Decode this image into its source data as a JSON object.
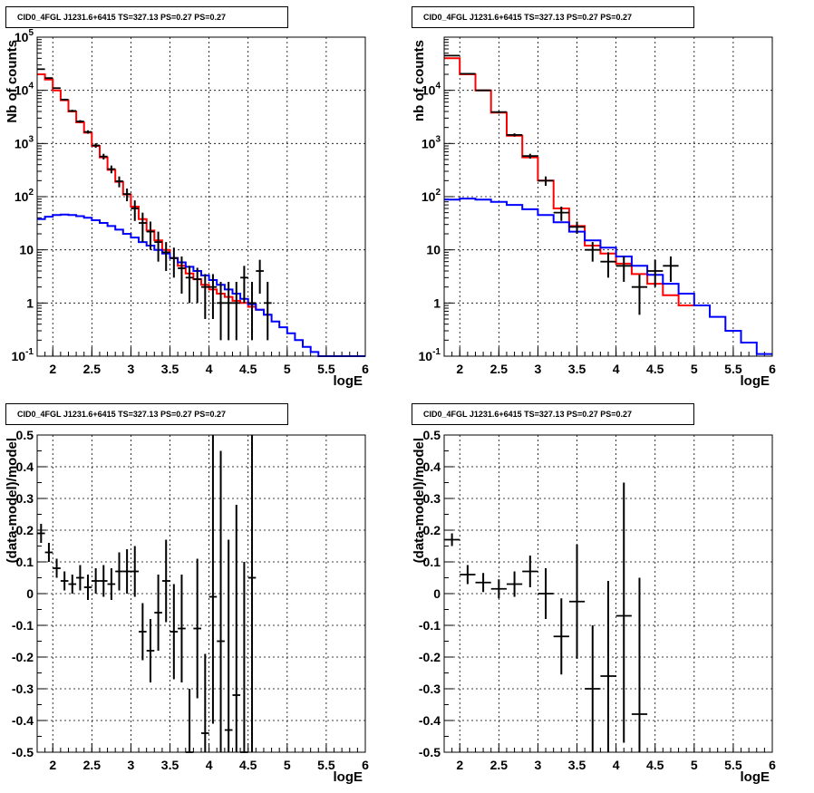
{
  "chart_data": [
    {
      "type": "line",
      "title": "CID0_4FGL J1231.6+6415 TS=327.13 PS=0.27 PS=0.27",
      "xlabel": "logE",
      "ylabel": "Nb of counts",
      "xlim": [
        1.8,
        6.0
      ],
      "ylim": [
        0.1,
        100000
      ],
      "yscale": "log",
      "grid": true,
      "xticks": [
        "2",
        "2.5",
        "3",
        "3.5",
        "4",
        "4.5",
        "5",
        "5.5",
        "6"
      ],
      "yticks": [
        "10^-1",
        "1",
        "10",
        "10^2",
        "10^3",
        "10^4",
        "10^5"
      ],
      "binwidth": 0.1,
      "series": [
        {
          "color": "#ff0000",
          "x": [
            1.8,
            1.9,
            2.0,
            2.1,
            2.2,
            2.3,
            2.4,
            2.5,
            2.6,
            2.7,
            2.8,
            2.9,
            3.0,
            3.1,
            3.2,
            3.3,
            3.4,
            3.5,
            3.6,
            3.7,
            3.8,
            3.9,
            4.0,
            4.1,
            4.2,
            4.3,
            4.4,
            4.5,
            4.6,
            4.7
          ],
          "values": [
            20000,
            16000,
            10000,
            6500,
            4000,
            2500,
            1600,
            900,
            550,
            320,
            190,
            110,
            65,
            38,
            23,
            15,
            10,
            7,
            5,
            3.6,
            2.8,
            2.2,
            1.8,
            1.5,
            1.3,
            1.1,
            1.0,
            0.85,
            0.75,
            0.6
          ]
        },
        {
          "color": "#0000ff",
          "x": [
            1.8,
            1.9,
            2.0,
            2.1,
            2.2,
            2.3,
            2.4,
            2.5,
            2.6,
            2.7,
            2.8,
            2.9,
            3.0,
            3.1,
            3.2,
            3.3,
            3.4,
            3.5,
            3.6,
            3.7,
            3.8,
            3.9,
            4.0,
            4.1,
            4.2,
            4.3,
            4.4,
            4.5,
            4.6,
            4.7,
            4.8,
            4.9,
            5.0,
            5.1,
            5.2,
            5.3,
            5.4,
            5.5,
            5.6,
            5.7,
            5.8,
            5.9
          ],
          "values": [
            38,
            42,
            45,
            46,
            45,
            43,
            40,
            36,
            32,
            28,
            24,
            20,
            17,
            14,
            12,
            10,
            8.5,
            7,
            5.8,
            4.8,
            4,
            3.3,
            2.7,
            2.2,
            1.8,
            1.5,
            1.2,
            0.95,
            0.75,
            0.6,
            0.45,
            0.35,
            0.27,
            0.2,
            0.15,
            0.12,
            0.1,
            0.1,
            0.1,
            0.1,
            0.1,
            0.1
          ]
        },
        {
          "color": "#000000",
          "style": "points",
          "x": [
            1.85,
            1.95,
            2.05,
            2.15,
            2.25,
            2.35,
            2.45,
            2.55,
            2.65,
            2.75,
            2.85,
            2.95,
            3.05,
            3.15,
            3.25,
            3.35,
            3.45,
            3.55,
            3.65,
            3.75,
            3.85,
            3.95,
            4.05,
            4.15,
            4.25,
            4.35,
            4.45,
            4.55,
            4.65,
            4.75
          ],
          "values": [
            25000,
            17000,
            11000,
            6700,
            4100,
            2600,
            1650,
            920,
            570,
            330,
            195,
            112,
            60,
            32,
            22,
            14,
            9,
            7,
            4.5,
            3,
            2.8,
            2,
            2,
            1,
            1,
            1,
            3,
            1,
            4,
            1
          ],
          "err_low": [
            500,
            400,
            300,
            250,
            200,
            150,
            120,
            90,
            70,
            55,
            45,
            30,
            25,
            18,
            12,
            8,
            5,
            4,
            3,
            2,
            1.8,
            1.5,
            1.5,
            0.8,
            0.8,
            0.8,
            2,
            0.8,
            2.5,
            0.8
          ],
          "err_high": [
            500,
            400,
            300,
            250,
            200,
            150,
            120,
            90,
            70,
            55,
            45,
            30,
            25,
            18,
            12,
            8,
            5,
            4,
            3,
            2,
            1.8,
            1.5,
            1.5,
            1.5,
            1.5,
            1.5,
            2,
            1.5,
            2.5,
            1.5
          ]
        }
      ]
    },
    {
      "type": "line",
      "title": "CID0_4FGL J1231.6+6415 TS=327.13 PS=0.27 PS=0.27",
      "xlabel": "logE",
      "ylabel": "nb of counts",
      "xlim": [
        1.8,
        6.0
      ],
      "ylim": [
        0.1,
        100000
      ],
      "yscale": "log",
      "grid": true,
      "xticks": [
        "2",
        "2.5",
        "3",
        "3.5",
        "4",
        "4.5",
        "5",
        "5.5",
        "6"
      ],
      "yticks": [
        "10^-1",
        "1",
        "10",
        "10^2",
        "10^3",
        "10^4"
      ],
      "binwidth": 0.2,
      "series": [
        {
          "color": "#ff0000",
          "x": [
            1.8,
            2.0,
            2.2,
            2.4,
            2.6,
            2.8,
            3.0,
            3.2,
            3.4,
            3.6,
            3.8,
            4.0,
            4.2,
            4.4,
            4.6,
            4.8
          ],
          "values": [
            40000,
            20000,
            10000,
            3800,
            1400,
            550,
            200,
            60,
            28,
            12,
            8.5,
            5.5,
            3.5,
            2.3,
            1.4,
            0.9
          ]
        },
        {
          "color": "#0000ff",
          "x": [
            1.8,
            2.0,
            2.2,
            2.4,
            2.6,
            2.8,
            3.0,
            3.2,
            3.4,
            3.6,
            3.8,
            4.0,
            4.2,
            4.4,
            4.6,
            4.8,
            5.0,
            5.2,
            5.4,
            5.6,
            5.8
          ],
          "values": [
            88,
            92,
            88,
            80,
            70,
            58,
            45,
            33,
            22,
            15,
            11,
            7.5,
            5,
            3.4,
            2.3,
            1.5,
            0.9,
            0.55,
            0.3,
            0.18,
            0.11
          ]
        },
        {
          "color": "#000000",
          "style": "points",
          "x": [
            1.9,
            2.1,
            2.3,
            2.5,
            2.7,
            2.9,
            3.1,
            3.3,
            3.5,
            3.7,
            3.9,
            4.1,
            4.3,
            4.5,
            4.7
          ],
          "values": [
            45000,
            20500,
            10000,
            3900,
            1450,
            580,
            200,
            50,
            27,
            10,
            6,
            5,
            2,
            4,
            5
          ],
          "err_low": [
            800,
            500,
            300,
            180,
            100,
            60,
            40,
            15,
            7,
            4,
            3,
            2.5,
            1.4,
            2,
            2.5
          ],
          "err_high": [
            800,
            500,
            300,
            180,
            100,
            60,
            40,
            15,
            7,
            4,
            3,
            2.5,
            1.4,
            2.5,
            2.5
          ]
        }
      ]
    },
    {
      "type": "scatter",
      "title": "CID0_4FGL J1231.6+6415 TS=327.13 PS=0.27 PS=0.27",
      "xlabel": "logE",
      "ylabel": "(data-model)/model",
      "xlim": [
        1.8,
        6.0
      ],
      "ylim": [
        -0.5,
        0.5
      ],
      "grid": true,
      "xticks": [
        "2",
        "2.5",
        "3",
        "3.5",
        "4",
        "4.5",
        "5",
        "5.5",
        "6"
      ],
      "yticks": [
        "-0.5",
        "-0.4",
        "-0.3",
        "-0.2",
        "-0.1",
        "0",
        "0.1",
        "0.2",
        "0.3",
        "0.4",
        "0.5"
      ],
      "binwidth": 0.1,
      "series": [
        {
          "color": "#000000",
          "x": [
            1.85,
            1.95,
            2.05,
            2.15,
            2.25,
            2.35,
            2.45,
            2.55,
            2.65,
            2.75,
            2.85,
            2.95,
            3.05,
            3.15,
            3.25,
            3.35,
            3.45,
            3.55,
            3.65,
            3.75,
            3.85,
            3.95,
            4.05,
            4.15,
            4.25,
            4.35,
            4.45,
            4.55
          ],
          "values": [
            0.19,
            0.13,
            0.08,
            0.04,
            0.03,
            0.05,
            0.02,
            0.04,
            0.04,
            0.03,
            0.07,
            0.07,
            0.07,
            -0.12,
            -0.18,
            -0.06,
            0.04,
            -0.12,
            -0.11,
            -0.5,
            -0.11,
            -0.44,
            -0.01,
            -0.15,
            -0.43,
            -0.32,
            -0.5,
            0.05
          ],
          "err_low": [
            0.03,
            0.03,
            0.03,
            0.03,
            0.03,
            0.04,
            0.04,
            0.04,
            0.05,
            0.05,
            0.06,
            0.07,
            0.08,
            0.09,
            0.1,
            0.12,
            0.13,
            0.15,
            0.17,
            0.2,
            0.22,
            0.25,
            0.4,
            0.4,
            0.4,
            0.4,
            0.4,
            0.6
          ],
          "err_high": [
            0.03,
            0.03,
            0.03,
            0.03,
            0.03,
            0.04,
            0.04,
            0.04,
            0.05,
            0.05,
            0.06,
            0.07,
            0.08,
            0.09,
            0.1,
            0.12,
            0.13,
            0.15,
            0.17,
            0.2,
            0.22,
            0.25,
            0.6,
            0.6,
            0.6,
            0.6,
            0.6,
            0.6
          ]
        }
      ]
    },
    {
      "type": "scatter",
      "title": "CID0_4FGL J1231.6+6415 TS=327.13 PS=0.27 PS=0.27",
      "xlabel": "logE",
      "ylabel": "(data-model)/model",
      "xlim": [
        1.8,
        6.0
      ],
      "ylim": [
        -0.5,
        0.5
      ],
      "grid": true,
      "xticks": [
        "2",
        "2.5",
        "3",
        "3.5",
        "4",
        "4.5",
        "5",
        "5.5",
        "6"
      ],
      "yticks": [
        "-0.5",
        "-0.4",
        "-0.3",
        "-0.2",
        "-0.1",
        "0",
        "0.1",
        "0.2",
        "0.3",
        "0.4",
        "0.5"
      ],
      "binwidth": 0.2,
      "series": [
        {
          "color": "#000000",
          "x": [
            1.9,
            2.1,
            2.3,
            2.5,
            2.7,
            2.9,
            3.1,
            3.3,
            3.5,
            3.7,
            3.9,
            4.1,
            4.3
          ],
          "values": [
            0.17,
            0.06,
            0.035,
            0.015,
            0.03,
            0.07,
            0.0,
            -0.135,
            -0.025,
            -0.3,
            -0.26,
            -0.07,
            -0.38
          ],
          "err_low": [
            0.02,
            0.03,
            0.03,
            0.03,
            0.04,
            0.05,
            0.08,
            0.12,
            0.18,
            0.2,
            0.3,
            0.4,
            0.3
          ],
          "err_high": [
            0.02,
            0.03,
            0.03,
            0.03,
            0.04,
            0.05,
            0.08,
            0.12,
            0.18,
            0.2,
            0.3,
            0.42,
            0.43
          ]
        }
      ]
    }
  ]
}
